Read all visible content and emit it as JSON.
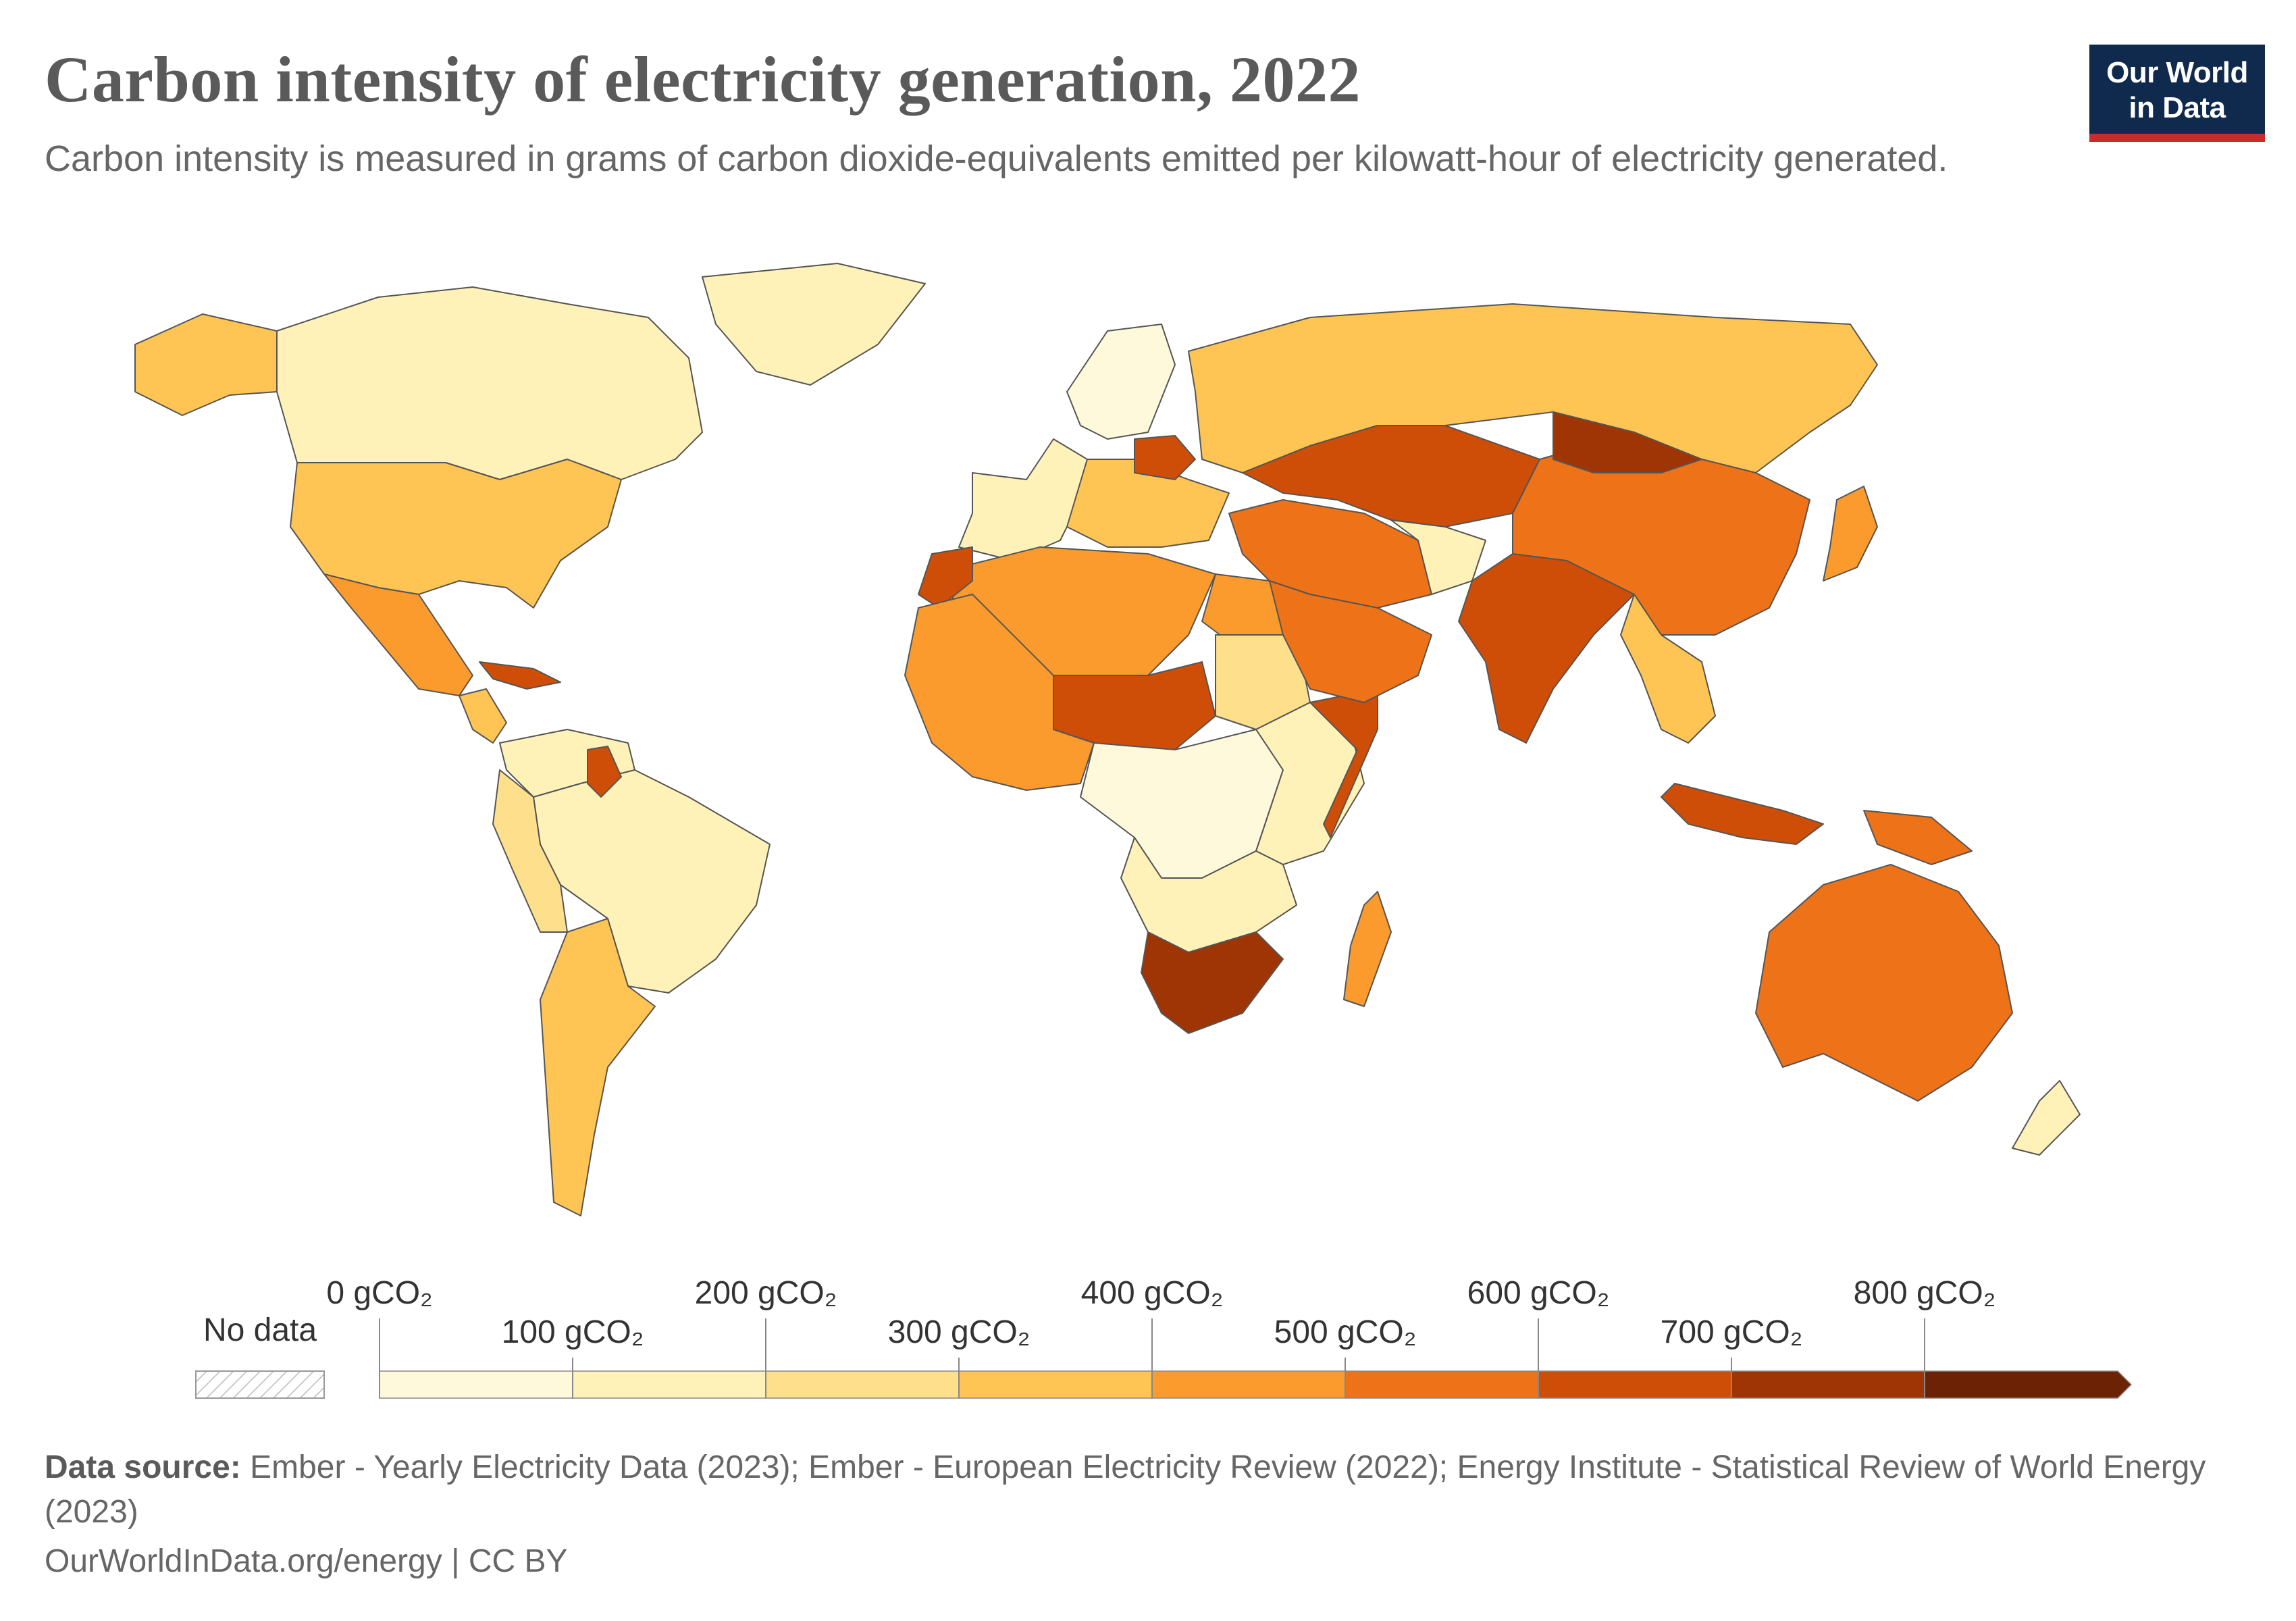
{
  "header": {
    "title": "Carbon intensity of electricity generation, 2022",
    "subtitle": "Carbon intensity is measured in grams of carbon dioxide-equivalents emitted per kilowatt-hour of electricity generated."
  },
  "logo": {
    "line1": "Our World",
    "line2": "in Data",
    "bg_color": "#0f2a4d",
    "accent_color": "#c92b2b"
  },
  "legend": {
    "no_data_label": "No data",
    "bins": [
      {
        "label": "0 gCO₂",
        "value": 0,
        "color": "#fff9dc"
      },
      {
        "label": "100 gCO₂",
        "value": 100,
        "color": "#fff2b8"
      },
      {
        "label": "200 gCO₂",
        "value": 200,
        "color": "#fedf8c"
      },
      {
        "label": "300 gCO₂",
        "value": 300,
        "color": "#fec454"
      },
      {
        "label": "400 gCO₂",
        "value": 400,
        "color": "#fb9a2d"
      },
      {
        "label": "500 gCO₂",
        "value": 500,
        "color": "#ee7218"
      },
      {
        "label": "600 gCO₂",
        "value": 600,
        "color": "#cf4e07"
      },
      {
        "label": "700 gCO₂",
        "value": 700,
        "color": "#9f3405"
      },
      {
        "label": "800 gCO₂",
        "value": 800,
        "color": "#6b2205"
      }
    ]
  },
  "regions": [
    {
      "name": "Canada",
      "bin": 1
    },
    {
      "name": "Alaska",
      "bin": 3
    },
    {
      "name": "Greenland",
      "bin": 1
    },
    {
      "name": "United States",
      "bin": 3
    },
    {
      "name": "Mexico",
      "bin": 4
    },
    {
      "name": "Central America",
      "bin": 3
    },
    {
      "name": "Cuba",
      "bin": 6
    },
    {
      "name": "South America North",
      "bin": 1
    },
    {
      "name": "Brazil",
      "bin": 1
    },
    {
      "name": "Andes West",
      "bin": 2
    },
    {
      "name": "Argentina",
      "bin": 3
    },
    {
      "name": "Guyana",
      "bin": 6
    },
    {
      "name": "Western Europe",
      "bin": 1
    },
    {
      "name": "Central Europe",
      "bin": 3
    },
    {
      "name": "Poland",
      "bin": 6
    },
    {
      "name": "Scandinavia",
      "bin": 0
    },
    {
      "name": "Russia",
      "bin": 3
    },
    {
      "name": "North Africa",
      "bin": 4
    },
    {
      "name": "Morocco",
      "bin": 6
    },
    {
      "name": "Egypt",
      "bin": 4
    },
    {
      "name": "Sahel",
      "bin": 6
    },
    {
      "name": "Sudan",
      "bin": 2
    },
    {
      "name": "West Africa",
      "bin": 4
    },
    {
      "name": "Central Africa",
      "bin": 0
    },
    {
      "name": "East Africa",
      "bin": 1
    },
    {
      "name": "Somalia",
      "bin": 6
    },
    {
      "name": "Southern Africa",
      "bin": 1
    },
    {
      "name": "South Africa",
      "bin": 7
    },
    {
      "name": "Madagascar",
      "bin": 4
    },
    {
      "name": "Middle East",
      "bin": 5
    },
    {
      "name": "Arabian Peninsula",
      "bin": 5
    },
    {
      "name": "Central Asia",
      "bin": 6
    },
    {
      "name": "Afghanistan",
      "bin": 1
    },
    {
      "name": "India",
      "bin": 6
    },
    {
      "name": "China",
      "bin": 5
    },
    {
      "name": "Mongolia",
      "bin": 7
    },
    {
      "name": "Japan",
      "bin": 4
    },
    {
      "name": "Southeast Asia",
      "bin": 3
    },
    {
      "name": "Indonesia",
      "bin": 6
    },
    {
      "name": "Papua New Guinea",
      "bin": 5
    },
    {
      "name": "Australia",
      "bin": 5
    },
    {
      "name": "New Zealand",
      "bin": 1
    }
  ],
  "footer": {
    "source_label": "Data source:",
    "source_text": "Ember - Yearly Electricity Data (2023); Ember - European Electricity Review (2022); Energy Institute - Statistical Review of World Energy (2023)",
    "url_text": "OurWorldInData.org/energy | CC BY"
  }
}
